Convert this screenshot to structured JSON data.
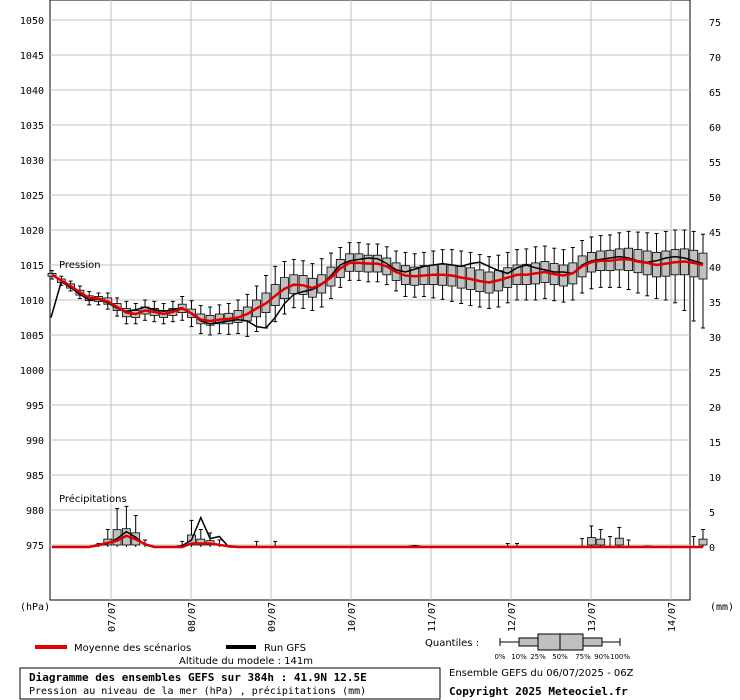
{
  "chart_data": {
    "type": "line",
    "y_left": {
      "unit": "(hPa)",
      "min": 975,
      "max": 1050,
      "ticks": [
        975,
        980,
        985,
        990,
        995,
        1000,
        1005,
        1010,
        1015,
        1020,
        1025,
        1030,
        1035,
        1040,
        1045,
        1050
      ]
    },
    "y_right": {
      "unit": "(mm)",
      "min": 0,
      "max": 75,
      "ticks": [
        0,
        5,
        10,
        15,
        20,
        25,
        30,
        35,
        40,
        45,
        50,
        55,
        60,
        65,
        70,
        75
      ]
    },
    "x": {
      "start": "2025-07-06",
      "end": "2025-07-14",
      "ticks": [
        "07/07",
        "08/07",
        "09/07",
        "10/07",
        "11/07",
        "12/07",
        "13/07",
        "14/07"
      ]
    },
    "section_labels": {
      "pressure": "Pression",
      "precip": "Précipitations"
    },
    "pressure": {
      "box_step_hours": 6,
      "box_values_hpa": [
        [
          1014.2,
          1013.8,
          1013.6,
          1013.4,
          1013.0
        ],
        [
          1013.4,
          1013.0,
          1012.8,
          1012.5,
          1012.1
        ],
        [
          1012.7,
          1012.3,
          1012.0,
          1011.7,
          1011.3
        ],
        [
          1012.0,
          1011.4,
          1011.1,
          1010.7,
          1010.2
        ],
        [
          1011.2,
          1010.6,
          1010.3,
          1009.9,
          1009.3
        ],
        [
          1011.0,
          1010.5,
          1010.2,
          1009.8,
          1009.3
        ],
        [
          1011.0,
          1010.3,
          1009.8,
          1009.4,
          1008.7
        ],
        [
          1010.3,
          1009.5,
          1009.0,
          1008.5,
          1007.7
        ],
        [
          1009.8,
          1008.8,
          1008.2,
          1007.6,
          1006.6
        ],
        [
          1009.5,
          1008.5,
          1008.0,
          1007.5,
          1006.6
        ],
        [
          1010.0,
          1009.0,
          1008.5,
          1008.0,
          1007.1
        ],
        [
          1009.8,
          1008.8,
          1008.3,
          1007.8,
          1006.9
        ],
        [
          1009.5,
          1008.5,
          1008.0,
          1007.5,
          1006.6
        ],
        [
          1009.8,
          1008.8,
          1008.3,
          1007.8,
          1006.9
        ],
        [
          1010.5,
          1009.4,
          1008.8,
          1008.2,
          1007.1
        ],
        [
          1009.9,
          1008.7,
          1008.1,
          1007.5,
          1006.2
        ],
        [
          1009.2,
          1008.0,
          1007.2,
          1006.6,
          1005.2
        ],
        [
          1009.0,
          1007.8,
          1007.0,
          1006.4,
          1005.0
        ],
        [
          1009.3,
          1008.0,
          1007.2,
          1006.6,
          1005.2
        ],
        [
          1009.5,
          1008.1,
          1007.3,
          1006.6,
          1005.1
        ],
        [
          1010.0,
          1008.5,
          1007.5,
          1006.8,
          1005.2
        ],
        [
          1010.8,
          1009.0,
          1008.0,
          1007.0,
          1004.8
        ],
        [
          1012.0,
          1010.0,
          1008.8,
          1007.6,
          1005.5
        ],
        [
          1013.5,
          1011.0,
          1009.5,
          1008.2,
          1006.0
        ],
        [
          1014.8,
          1012.2,
          1010.6,
          1009.2,
          1006.9
        ],
        [
          1015.5,
          1013.2,
          1011.6,
          1010.2,
          1008.0
        ],
        [
          1015.8,
          1013.6,
          1012.2,
          1010.9,
          1008.9
        ],
        [
          1015.6,
          1013.5,
          1012.1,
          1010.8,
          1008.8
        ],
        [
          1015.2,
          1013.1,
          1011.7,
          1010.4,
          1008.5
        ],
        [
          1015.9,
          1013.6,
          1012.3,
          1011.0,
          1009.0
        ],
        [
          1016.7,
          1014.7,
          1013.2,
          1012.0,
          1010.2
        ],
        [
          1017.5,
          1015.8,
          1014.5,
          1013.2,
          1011.8
        ],
        [
          1018.2,
          1016.6,
          1015.3,
          1014.1,
          1012.8
        ],
        [
          1018.2,
          1016.6,
          1015.3,
          1014.1,
          1012.8
        ],
        [
          1018.0,
          1016.4,
          1015.2,
          1014.0,
          1012.6
        ],
        [
          1018.0,
          1016.4,
          1015.2,
          1014.0,
          1012.6
        ],
        [
          1017.6,
          1016.0,
          1014.8,
          1013.6,
          1012.2
        ],
        [
          1017.0,
          1015.3,
          1014.0,
          1012.8,
          1011.3
        ],
        [
          1016.8,
          1014.9,
          1013.5,
          1012.2,
          1010.5
        ],
        [
          1016.6,
          1014.7,
          1013.4,
          1012.1,
          1010.4
        ],
        [
          1016.8,
          1014.9,
          1013.5,
          1012.2,
          1010.5
        ],
        [
          1017.0,
          1015.0,
          1013.6,
          1012.2,
          1010.3
        ],
        [
          1017.2,
          1015.1,
          1013.6,
          1012.1,
          1010.1
        ],
        [
          1017.2,
          1015.0,
          1013.5,
          1012.0,
          1009.8
        ],
        [
          1017.0,
          1014.8,
          1013.2,
          1011.7,
          1009.5
        ],
        [
          1016.8,
          1014.6,
          1013.0,
          1011.5,
          1009.2
        ],
        [
          1016.5,
          1014.3,
          1012.7,
          1011.2,
          1009.0
        ],
        [
          1016.2,
          1014.0,
          1012.5,
          1011.0,
          1008.8
        ],
        [
          1016.4,
          1014.2,
          1012.8,
          1011.3,
          1009.0
        ],
        [
          1016.8,
          1014.6,
          1013.2,
          1011.8,
          1009.6
        ],
        [
          1017.2,
          1015.0,
          1013.6,
          1012.2,
          1010.0
        ],
        [
          1017.3,
          1015.1,
          1013.6,
          1012.2,
          1010.0
        ],
        [
          1017.6,
          1015.3,
          1013.8,
          1012.3,
          1010.0
        ],
        [
          1017.7,
          1015.5,
          1014.0,
          1012.5,
          1010.2
        ],
        [
          1017.4,
          1015.2,
          1013.7,
          1012.2,
          1009.9
        ],
        [
          1017.2,
          1015.0,
          1013.5,
          1012.0,
          1009.7
        ],
        [
          1017.5,
          1015.3,
          1013.8,
          1012.3,
          1010.0
        ],
        [
          1018.5,
          1016.3,
          1014.8,
          1013.3,
          1011.0
        ],
        [
          1019.0,
          1016.8,
          1015.4,
          1014.0,
          1011.6
        ],
        [
          1019.2,
          1017.0,
          1015.6,
          1014.2,
          1011.8
        ],
        [
          1019.3,
          1017.1,
          1015.6,
          1014.2,
          1011.8
        ],
        [
          1019.6,
          1017.3,
          1015.8,
          1014.3,
          1011.8
        ],
        [
          1019.8,
          1017.4,
          1015.8,
          1014.2,
          1011.5
        ],
        [
          1019.7,
          1017.2,
          1015.5,
          1013.9,
          1011.0
        ],
        [
          1019.6,
          1017.0,
          1015.3,
          1013.6,
          1010.6
        ],
        [
          1019.5,
          1016.8,
          1015.0,
          1013.3,
          1010.2
        ],
        [
          1019.8,
          1017.0,
          1015.2,
          1013.4,
          1010.0
        ],
        [
          1020.0,
          1017.2,
          1015.4,
          1013.6,
          1009.6
        ],
        [
          1020.0,
          1017.3,
          1015.5,
          1013.6,
          1008.5
        ],
        [
          1019.8,
          1017.1,
          1015.3,
          1013.3,
          1007.0
        ],
        [
          1019.4,
          1016.7,
          1015.0,
          1013.0,
          1006.0
        ]
      ],
      "mean_hpa": [
        1013.6,
        1012.8,
        1012.0,
        1011.1,
        1010.3,
        1010.2,
        1009.8,
        1009.0,
        1008.2,
        1008.0,
        1008.5,
        1008.3,
        1008.0,
        1008.3,
        1008.8,
        1008.1,
        1007.2,
        1007.0,
        1007.2,
        1007.3,
        1007.5,
        1008.0,
        1008.8,
        1009.5,
        1010.6,
        1011.6,
        1012.2,
        1012.1,
        1011.7,
        1012.3,
        1013.2,
        1014.5,
        1015.3,
        1015.3,
        1015.2,
        1015.2,
        1014.8,
        1014.0,
        1013.5,
        1013.4,
        1013.5,
        1013.6,
        1013.6,
        1013.5,
        1013.2,
        1013.0,
        1012.7,
        1012.5,
        1012.8,
        1013.2,
        1013.6,
        1013.6,
        1013.8,
        1014.0,
        1013.7,
        1013.5,
        1013.8,
        1014.8,
        1015.4,
        1015.6,
        1015.6,
        1015.8,
        1015.8,
        1015.5,
        1015.3,
        1015.0,
        1015.2,
        1015.4,
        1015.5,
        1015.3,
        1015.0
      ],
      "run_gfs_hpa": [
        1008.0,
        1012.6,
        1011.8,
        1010.8,
        1010.0,
        1010.1,
        1009.6,
        1008.8,
        1008.4,
        1008.6,
        1009.0,
        1008.6,
        1008.4,
        1008.6,
        1008.9,
        1008.0,
        1007.0,
        1006.6,
        1006.8,
        1007.0,
        1007.2,
        1007.0,
        1006.2,
        1006.0,
        1007.5,
        1009.5,
        1010.8,
        1011.2,
        1011.5,
        1012.2,
        1013.5,
        1015.0,
        1015.6,
        1015.8,
        1016.0,
        1015.9,
        1015.2,
        1014.3,
        1014.0,
        1014.4,
        1014.8,
        1015.0,
        1015.2,
        1015.0,
        1014.8,
        1015.2,
        1015.4,
        1014.8,
        1014.2,
        1013.8,
        1014.6,
        1015.0,
        1014.6,
        1014.3,
        1014.0,
        1014.0,
        1013.8,
        1015.0,
        1015.6,
        1015.8,
        1016.0,
        1016.2,
        1016.0,
        1015.6,
        1015.4,
        1015.6,
        1016.0,
        1016.2,
        1016.0,
        1015.6,
        1015.2
      ],
      "run_gfs_start_hpa": 1007.5
    },
    "precip": {
      "box_step_hours": 6,
      "mean_mm": [
        0,
        0,
        0,
        0,
        0,
        0.3,
        0.6,
        0.9,
        1.6,
        1.1,
        0.4,
        0,
        0,
        0,
        0,
        0.5,
        0.5,
        0.5,
        0.3,
        0.1,
        0,
        0,
        0,
        0,
        0,
        0,
        0,
        0,
        0,
        0,
        0,
        0,
        0,
        0,
        0,
        0,
        0,
        0,
        0,
        0,
        0,
        0,
        0,
        0,
        0,
        0,
        0,
        0,
        0,
        0,
        0,
        0,
        0,
        0,
        0,
        0,
        0,
        0,
        0,
        0,
        0,
        0,
        0,
        0,
        0,
        0,
        0,
        0,
        0,
        0,
        0
      ],
      "run_gfs_mm": [
        0,
        0,
        0,
        0,
        0,
        0.2,
        0.5,
        1.2,
        2.2,
        1.4,
        0.3,
        0,
        0,
        0,
        0.2,
        1.0,
        4.2,
        1.2,
        1.5,
        0,
        0,
        0,
        0,
        0,
        0,
        0,
        0,
        0,
        0,
        0,
        0,
        0,
        0,
        0,
        0,
        0,
        0,
        0,
        0,
        0.2,
        0,
        0,
        0,
        0,
        0,
        0,
        0,
        0,
        0,
        0,
        0,
        0,
        0,
        0,
        0,
        0,
        0,
        0,
        0,
        0,
        0,
        0,
        0,
        0,
        0.1,
        0,
        0,
        0,
        0,
        0,
        0
      ],
      "whisker_90_mm": [
        0,
        0,
        0,
        0,
        0,
        0.5,
        2.5,
        5.5,
        5.8,
        4.5,
        1.0,
        0,
        0,
        0,
        0.8,
        3.8,
        2.5,
        2.0,
        1.0,
        0.2,
        0,
        0,
        0.8,
        0,
        0.8,
        0,
        0,
        0,
        0,
        0,
        0,
        0,
        0,
        0,
        0,
        0,
        0,
        0,
        0,
        0.2,
        0,
        0,
        0,
        0,
        0,
        0,
        0,
        0,
        0,
        0.5,
        0.5,
        0,
        0,
        0,
        0,
        0,
        0,
        1.2,
        3.0,
        2.5,
        1.5,
        2.8,
        1.0,
        0,
        0,
        0,
        0,
        0,
        0,
        1.5,
        2.5
      ]
    },
    "legend": {
      "mean_label": "Moyenne des scénarios",
      "run_label": "Run GFS",
      "mean_color": "#e00000",
      "run_color": "#000000",
      "box_fill": "#c0c0c0",
      "quantiles_label": "Quantiles :",
      "quantile_ticks": [
        "0%",
        "10%",
        "25%",
        "50%",
        "75%",
        "90%",
        "100%"
      ]
    }
  },
  "footer": {
    "altitude": "Altitude du modele : 141m",
    "title_bold": "Diagramme des ensembles GEFS sur 384h : 41.9N 12.5E",
    "title_sub": "Pression au niveau de la mer (hPa) , précipitations (mm)",
    "ensemble_info": "Ensemble GEFS du 06/07/2025 - 06Z",
    "copyright": "Copyright 2025 Meteociel.fr"
  }
}
